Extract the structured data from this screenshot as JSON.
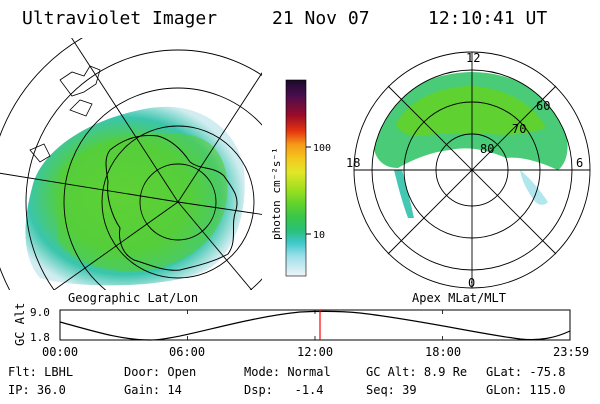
{
  "header": {
    "title": "Ultraviolet Imager",
    "date": "21 Nov 07",
    "time": "12:10:41 UT"
  },
  "colorbar": {
    "unit_label": "photon cm⁻²s⁻¹",
    "ticks": [
      "100",
      "10"
    ],
    "colors": [
      "#1a0a2a",
      "#2e0f4a",
      "#4a0d4f",
      "#6e0c3c",
      "#9a0c28",
      "#c41016",
      "#e43410",
      "#f26614",
      "#f59a18",
      "#f5c81e",
      "#e2e628",
      "#a6e020",
      "#62d32a",
      "#38c64a",
      "#2ac07a",
      "#30c2a8",
      "#3ec8cc",
      "#66d3e0",
      "#9ee0ea",
      "#cfecf0",
      "#eef4f6"
    ]
  },
  "left_panel": {
    "label": "Geographic Lat/Lon"
  },
  "right_panel": {
    "label": "Apex MLat/MLT",
    "mlt_labels": {
      "top": "12",
      "left": "18",
      "right": "6",
      "bottom": "0"
    },
    "lat_labels": [
      "60",
      "70",
      "80"
    ]
  },
  "timeline": {
    "axis_title": "GC Alt",
    "y_ticks": [
      "9.0",
      "1.8"
    ],
    "x_ticks": [
      "00:00",
      "06:00",
      "12:00",
      "18:00",
      "23:59"
    ],
    "marker_time": "12:10:41",
    "cursor_color": "#ff0000"
  },
  "status": {
    "row1": [
      {
        "label": "Flt:",
        "value": "LBHL"
      },
      {
        "label": "Door:",
        "value": "Open"
      },
      {
        "label": "Mode:",
        "value": "Normal"
      },
      {
        "label": "GC Alt:",
        "value": "8.9 Re"
      },
      {
        "label": "GLat:",
        "value": "-75.8"
      }
    ],
    "row2": [
      {
        "label": "IP:",
        "value": "36.0"
      },
      {
        "label": "Gain:",
        "value": "14"
      },
      {
        "label": "Dsp:",
        "value": "  -1.4"
      },
      {
        "label": "Seq:",
        "value": "39"
      },
      {
        "label": "GLon:",
        "value": "115.0"
      }
    ]
  }
}
